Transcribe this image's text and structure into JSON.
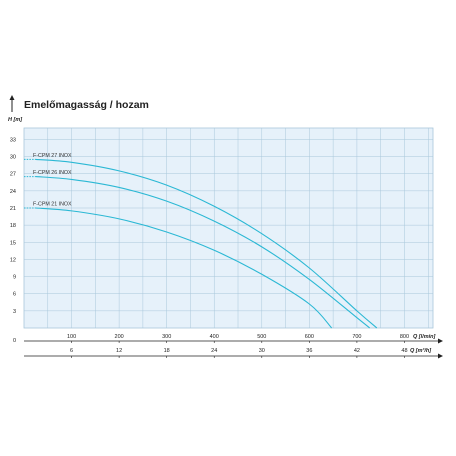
{
  "chart_data": {
    "type": "line",
    "title": "Emelőmagasság / hozam",
    "ylabel": "H [m]",
    "xlabel": "Q [l/min]",
    "x2label": "Q [m³/h]",
    "ylim": [
      0,
      35
    ],
    "xlim": [
      0,
      860
    ],
    "grid": true,
    "y_ticks": [
      "0",
      "3",
      "6",
      "9",
      "12",
      "15",
      "18",
      "21",
      "24",
      "27",
      "30",
      "33"
    ],
    "x_ticks": [
      "100",
      "200",
      "300",
      "400",
      "500",
      "600",
      "700",
      "800"
    ],
    "x2_ticks": [
      "6",
      "12",
      "18",
      "24",
      "30",
      "36",
      "42",
      "48"
    ],
    "series": [
      {
        "name": "F-CPM 27 INOX",
        "x": [
          0,
          100,
          200,
          300,
          400,
          500,
          600,
          700,
          742
        ],
        "y": [
          29.5,
          29.0,
          27.5,
          25.0,
          21.3,
          16.5,
          10.5,
          3.0,
          0
        ]
      },
      {
        "name": "F-CPM 26 INOX",
        "x": [
          0,
          100,
          200,
          300,
          400,
          500,
          600,
          700,
          727
        ],
        "y": [
          26.5,
          26.0,
          24.6,
          22.2,
          18.7,
          14.2,
          8.5,
          1.8,
          0
        ]
      },
      {
        "name": "F-CPM 21 INOX",
        "x": [
          0,
          100,
          200,
          300,
          400,
          500,
          600,
          647
        ],
        "y": [
          21.0,
          20.5,
          19.1,
          16.8,
          13.6,
          9.4,
          4.2,
          0
        ]
      }
    ]
  },
  "colors": {
    "plot_bg": "#e6f1fa",
    "grid": "#a9c7db",
    "curve": "#2bb8d4",
    "axis": "#222222"
  }
}
